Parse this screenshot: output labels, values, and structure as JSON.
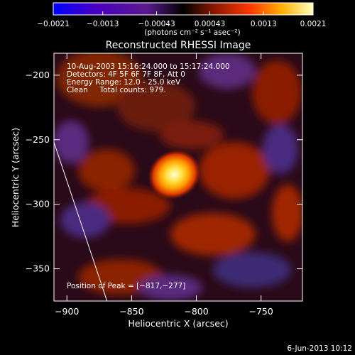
{
  "chart_data": {
    "type": "heatmap",
    "title": "Reconstructed RHESSI Image",
    "xlabel": "Heliocentric X (arcsec)",
    "ylabel": "Heliocentric Y (arcsec)",
    "xlim": [
      -910,
      -718
    ],
    "ylim": [
      -375,
      -183
    ],
    "x_ticks": [
      -900,
      -850,
      -800,
      -750
    ],
    "x_tick_labels": [
      "−900",
      "−850",
      "−800",
      "−750"
    ],
    "y_ticks": [
      -200,
      -250,
      -300,
      -350
    ],
    "y_tick_labels": [
      "−200",
      "−250",
      "−300",
      "−350"
    ],
    "colorbar": {
      "range": [
        -0.0021,
        0.0021
      ],
      "tick_values": [
        -0.0021,
        -0.0013,
        -0.00043,
        0.00043,
        0.0013,
        0.0021
      ],
      "tick_labels": [
        "−0.0021",
        "−0.0013",
        "−0.00043",
        "0.00043",
        "0.0013",
        "0.0021"
      ],
      "unit_label": "(photons cm⁻² s⁻¹ asec⁻²)",
      "colors": [
        "#0000ff",
        "#4a00c0",
        "#5a1b8c",
        "#000000",
        "#8b1800",
        "#ff3a00",
        "#ffb000",
        "#ffffc0"
      ]
    },
    "peak": {
      "x": -817,
      "y": -277
    },
    "limb_line": {
      "x": [
        -910,
        -869
      ],
      "y": [
        -252,
        -375
      ]
    }
  },
  "annotations": [
    "10-Aug-2003 15:16:24.000 to 15:17:24.000",
    "Detectors: 4F 5F 6F 7F 8F, Att 0",
    "Energy Range: 12.0 - 25.0 keV",
    "Clean     Total counts: 979."
  ],
  "peak_label": "Position of Peak = [−817,−277]",
  "date_stamp": "6-Jun-2013 10:12"
}
